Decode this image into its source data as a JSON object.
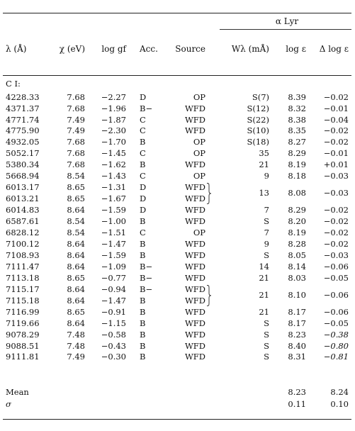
{
  "group_header": "α Lyr",
  "columns": [
    "λ (Å)",
    "χ (eV)",
    "log gf",
    "Acc.",
    "Source",
    "Wλ (mÅ)",
    "log ε",
    "Δ log ε"
  ],
  "section_label": "C I:",
  "rows": [
    {
      "lambda": "4228.33",
      "chi": "7.68",
      "loggf": "−2.27",
      "acc": "D",
      "src": "OP",
      "w": "S(7)",
      "le": "8.39",
      "dle": "−0.02",
      "italic": false
    },
    {
      "lambda": "4371.37",
      "chi": "7.68",
      "loggf": "−1.96",
      "acc": "B−",
      "src": "WFD",
      "w": "S(12)",
      "le": "8.32",
      "dle": "−0.01",
      "italic": false
    },
    {
      "lambda": "4771.74",
      "chi": "7.49",
      "loggf": "−1.87",
      "acc": "C",
      "src": "WFD",
      "w": "S(22)",
      "le": "8.38",
      "dle": "−0.04",
      "italic": false
    },
    {
      "lambda": "4775.90",
      "chi": "7.49",
      "loggf": "−2.30",
      "acc": "C",
      "src": "WFD",
      "w": "S(10)",
      "le": "8.35",
      "dle": "−0.02",
      "italic": false
    },
    {
      "lambda": "4932.05",
      "chi": "7.68",
      "loggf": "−1.70",
      "acc": "B",
      "src": "OP",
      "w": "S(18)",
      "le": "8.27",
      "dle": "−0.02",
      "italic": false
    },
    {
      "lambda": "5052.17",
      "chi": "7.68",
      "loggf": "−1.45",
      "acc": "C",
      "src": "OP",
      "w": "35",
      "le": "8.29",
      "dle": "−0.01",
      "italic": false
    },
    {
      "lambda": "5380.34",
      "chi": "7.68",
      "loggf": "−1.62",
      "acc": "B",
      "src": "WFD",
      "w": "21",
      "le": "8.19",
      "dle": "+0.01",
      "italic": false
    },
    {
      "lambda": "5668.94",
      "chi": "8.54",
      "loggf": "−1.43",
      "acc": "C",
      "src": "OP",
      "w": "9",
      "le": "8.18",
      "dle": "−0.03",
      "italic": false
    },
    {
      "lambda": "6013.17",
      "chi": "8.65",
      "loggf": "−1.31",
      "acc": "D",
      "src": "WFD",
      "w": "",
      "le": "",
      "dle": "",
      "italic": false
    },
    {
      "lambda": "6013.21",
      "chi": "8.65",
      "loggf": "−1.67",
      "acc": "D",
      "src": "WFD",
      "w": "",
      "le": "",
      "dle": "",
      "italic": false
    },
    {
      "lambda": "6014.83",
      "chi": "8.64",
      "loggf": "−1.59",
      "acc": "D",
      "src": "WFD",
      "w": "7",
      "le": "8.29",
      "dle": "−0.02",
      "italic": false
    },
    {
      "lambda": "6587.61",
      "chi": "8.54",
      "loggf": "−1.00",
      "acc": "B",
      "src": "WFD",
      "w": "S",
      "le": "8.20",
      "dle": "−0.02",
      "italic": false
    },
    {
      "lambda": "6828.12",
      "chi": "8.54",
      "loggf": "−1.51",
      "acc": "C",
      "src": "OP",
      "w": "7",
      "le": "8.19",
      "dle": "−0.02",
      "italic": false
    },
    {
      "lambda": "7100.12",
      "chi": "8.64",
      "loggf": "−1.47",
      "acc": "B",
      "src": "WFD",
      "w": "9",
      "le": "8.28",
      "dle": "−0.02",
      "italic": false
    },
    {
      "lambda": "7108.93",
      "chi": "8.64",
      "loggf": "−1.59",
      "acc": "B",
      "src": "WFD",
      "w": "S",
      "le": "8.05",
      "dle": "−0.03",
      "italic": false
    },
    {
      "lambda": "7111.47",
      "chi": "8.64",
      "loggf": "−1.09",
      "acc": "B−",
      "src": "WFD",
      "w": "14",
      "le": "8.14",
      "dle": "−0.06",
      "italic": false
    },
    {
      "lambda": "7113.18",
      "chi": "8.65",
      "loggf": "−0.77",
      "acc": "B−",
      "src": "WFD",
      "w": "21",
      "le": "8.03",
      "dle": "−0.05",
      "italic": false
    },
    {
      "lambda": "7115.17",
      "chi": "8.64",
      "loggf": "−0.94",
      "acc": "B−",
      "src": "WFD",
      "w": "",
      "le": "",
      "dle": "",
      "italic": false
    },
    {
      "lambda": "7115.18",
      "chi": "8.64",
      "loggf": "−1.47",
      "acc": "B",
      "src": "WFD",
      "w": "",
      "le": "",
      "dle": "",
      "italic": false
    },
    {
      "lambda": "7116.99",
      "chi": "8.65",
      "loggf": "−0.91",
      "acc": "B",
      "src": "WFD",
      "w": "21",
      "le": "8.17",
      "dle": "−0.06",
      "italic": false
    },
    {
      "lambda": "7119.66",
      "chi": "8.64",
      "loggf": "−1.15",
      "acc": "B",
      "src": "WFD",
      "w": "S",
      "le": "8.17",
      "dle": "−0.05",
      "italic": false
    },
    {
      "lambda": "9078.29",
      "chi": "7.48",
      "loggf": "−0.58",
      "acc": "B",
      "src": "WFD",
      "w": "S",
      "le": "8.23",
      "dle": "−0.38",
      "italic": true
    },
    {
      "lambda": "9088.51",
      "chi": "7.48",
      "loggf": "−0.43",
      "acc": "B",
      "src": "WFD",
      "w": "S",
      "le": "8.40",
      "dle": "−0.80",
      "italic": true
    },
    {
      "lambda": "9111.81",
      "chi": "7.49",
      "loggf": "−0.30",
      "acc": "B",
      "src": "WFD",
      "w": "S",
      "le": "8.31",
      "dle": "−0.81",
      "italic": true
    }
  ],
  "blends": [
    {
      "w": "13",
      "le": "8.08",
      "dle": "−0.03"
    },
    {
      "w": "21",
      "le": "8.10",
      "dle": "−0.06"
    }
  ],
  "summary": [
    {
      "label": "Mean",
      "le": "8.23",
      "dle": "8.24"
    },
    {
      "label": "σ",
      "le": "0.11",
      "dle": "0.10"
    }
  ]
}
